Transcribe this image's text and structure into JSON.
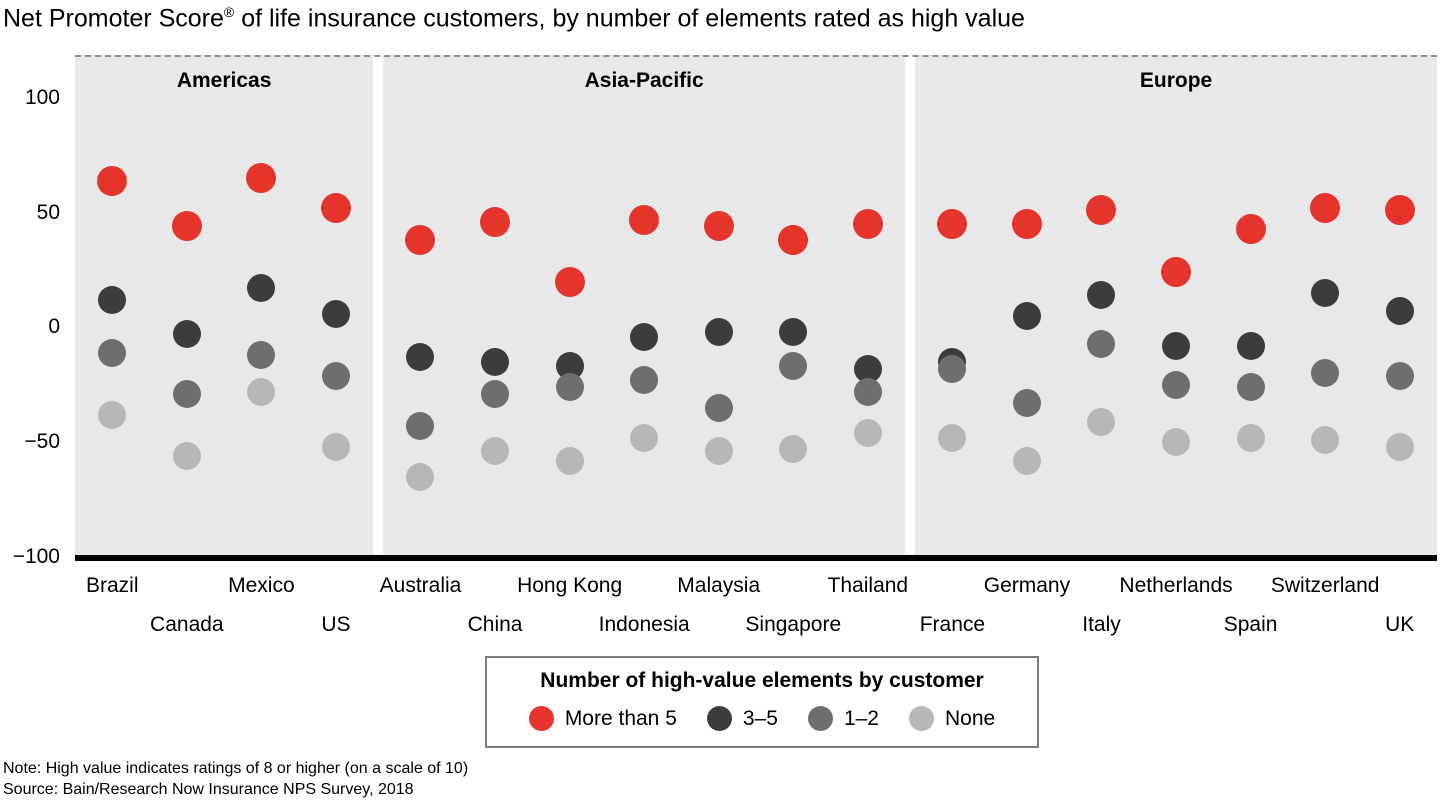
{
  "title": {
    "prefix": "Net Promoter Score",
    "sup": "®",
    "suffix": " of life insurance customers, by number of elements rated as high value"
  },
  "note": "Note: High value indicates ratings of 8 or higher (on a scale of 10)",
  "source": "Source: Bain/Research Now Insurance NPS Survey, 2018",
  "legend": {
    "title": "Number of high-value elements by customer",
    "items": [
      {
        "label": "More than 5",
        "color": "#e4342c"
      },
      {
        "label": "3–5",
        "color": "#3c3c3c"
      },
      {
        "label": "1–2",
        "color": "#6e6e6e"
      },
      {
        "label": "None",
        "color": "#b7b7b7"
      }
    ]
  },
  "chart_data": {
    "type": "scatter",
    "title": "Net Promoter Score of life insurance customers, by number of elements rated as high value",
    "ylabel": "Net Promoter Score",
    "ylim": [
      -100,
      100
    ],
    "yticks": [
      100,
      50,
      0,
      -50,
      -100
    ],
    "zero_line": true,
    "legend_position": "bottom",
    "series_names": [
      "More than 5",
      "3–5",
      "1–2",
      "None"
    ],
    "series_colors": [
      "#e4342c",
      "#3c3c3c",
      "#6e6e6e",
      "#b7b7b7"
    ],
    "groups": [
      {
        "name": "Americas",
        "countries": [
          {
            "name": "Brazil",
            "values": [
              64,
              12,
              -11,
              -38
            ]
          },
          {
            "name": "Canada",
            "values": [
              44,
              -3,
              -29,
              -56
            ]
          },
          {
            "name": "Mexico",
            "values": [
              65,
              17,
              -12,
              -28
            ]
          },
          {
            "name": "US",
            "values": [
              52,
              6,
              -21,
              -52
            ]
          }
        ]
      },
      {
        "name": "Asia-Pacific",
        "countries": [
          {
            "name": "Australia",
            "values": [
              38,
              -13,
              -43,
              -65
            ]
          },
          {
            "name": "China",
            "values": [
              46,
              -15,
              -29,
              -54
            ]
          },
          {
            "name": "Hong Kong",
            "values": [
              20,
              -17,
              -26,
              -58
            ]
          },
          {
            "name": "Indonesia",
            "values": [
              47,
              -4,
              -23,
              -48
            ]
          },
          {
            "name": "Malaysia",
            "values": [
              44,
              -2,
              -35,
              -54
            ]
          },
          {
            "name": "Singapore",
            "values": [
              38,
              -2,
              -17,
              -53
            ]
          },
          {
            "name": "Thailand",
            "values": [
              45,
              -18,
              -28,
              -46
            ]
          }
        ]
      },
      {
        "name": "Europe",
        "countries": [
          {
            "name": "France",
            "values": [
              45,
              -15,
              -18,
              -48
            ]
          },
          {
            "name": "Germany",
            "values": [
              45,
              5,
              -33,
              -58
            ]
          },
          {
            "name": "Italy",
            "values": [
              51,
              14,
              -7,
              -41
            ]
          },
          {
            "name": "Netherlands",
            "values": [
              24,
              -8,
              -25,
              -50
            ]
          },
          {
            "name": "Spain",
            "values": [
              43,
              -8,
              -26,
              -48
            ]
          },
          {
            "name": "Switzerland",
            "values": [
              52,
              15,
              -20,
              -49
            ]
          },
          {
            "name": "UK",
            "values": [
              51,
              7,
              -21,
              -52
            ]
          }
        ]
      }
    ]
  }
}
